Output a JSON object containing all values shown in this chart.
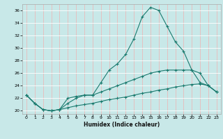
{
  "title": "",
  "xlabel": "Humidex (Indice chaleur)",
  "ylabel": "",
  "background_color": "#c8e8e8",
  "grid_color": "#ffffff",
  "line_color": "#1a7a6e",
  "x_values": [
    0,
    1,
    2,
    3,
    4,
    5,
    6,
    7,
    8,
    9,
    10,
    11,
    12,
    13,
    14,
    15,
    16,
    17,
    18,
    19,
    20,
    21,
    22,
    23
  ],
  "line1": [
    22.5,
    21.2,
    20.2,
    20.0,
    20.2,
    22.0,
    22.3,
    22.5,
    22.5,
    24.5,
    26.5,
    27.5,
    29.0,
    31.5,
    35.0,
    36.5,
    36.0,
    33.5,
    31.0,
    29.5,
    26.5,
    24.5,
    24.0,
    23.0
  ],
  "line2": [
    22.5,
    21.2,
    20.2,
    20.0,
    20.2,
    21.2,
    22.0,
    22.5,
    22.5,
    23.0,
    23.5,
    24.0,
    24.5,
    25.0,
    25.5,
    26.0,
    26.3,
    26.5,
    26.5,
    26.5,
    26.5,
    26.0,
    24.0,
    23.0
  ],
  "line3": [
    22.5,
    21.2,
    20.2,
    20.0,
    20.2,
    20.5,
    20.8,
    21.0,
    21.2,
    21.5,
    21.8,
    22.0,
    22.2,
    22.5,
    22.8,
    23.0,
    23.3,
    23.5,
    23.8,
    24.0,
    24.2,
    24.3,
    24.0,
    23.0
  ],
  "ylim": [
    19.5,
    37.0
  ],
  "xlim": [
    -0.5,
    23.5
  ],
  "yticks": [
    20,
    22,
    24,
    26,
    28,
    30,
    32,
    34,
    36
  ],
  "xticks": [
    0,
    1,
    2,
    3,
    4,
    5,
    6,
    7,
    8,
    9,
    10,
    11,
    12,
    13,
    14,
    15,
    16,
    17,
    18,
    19,
    20,
    21,
    22,
    23
  ]
}
